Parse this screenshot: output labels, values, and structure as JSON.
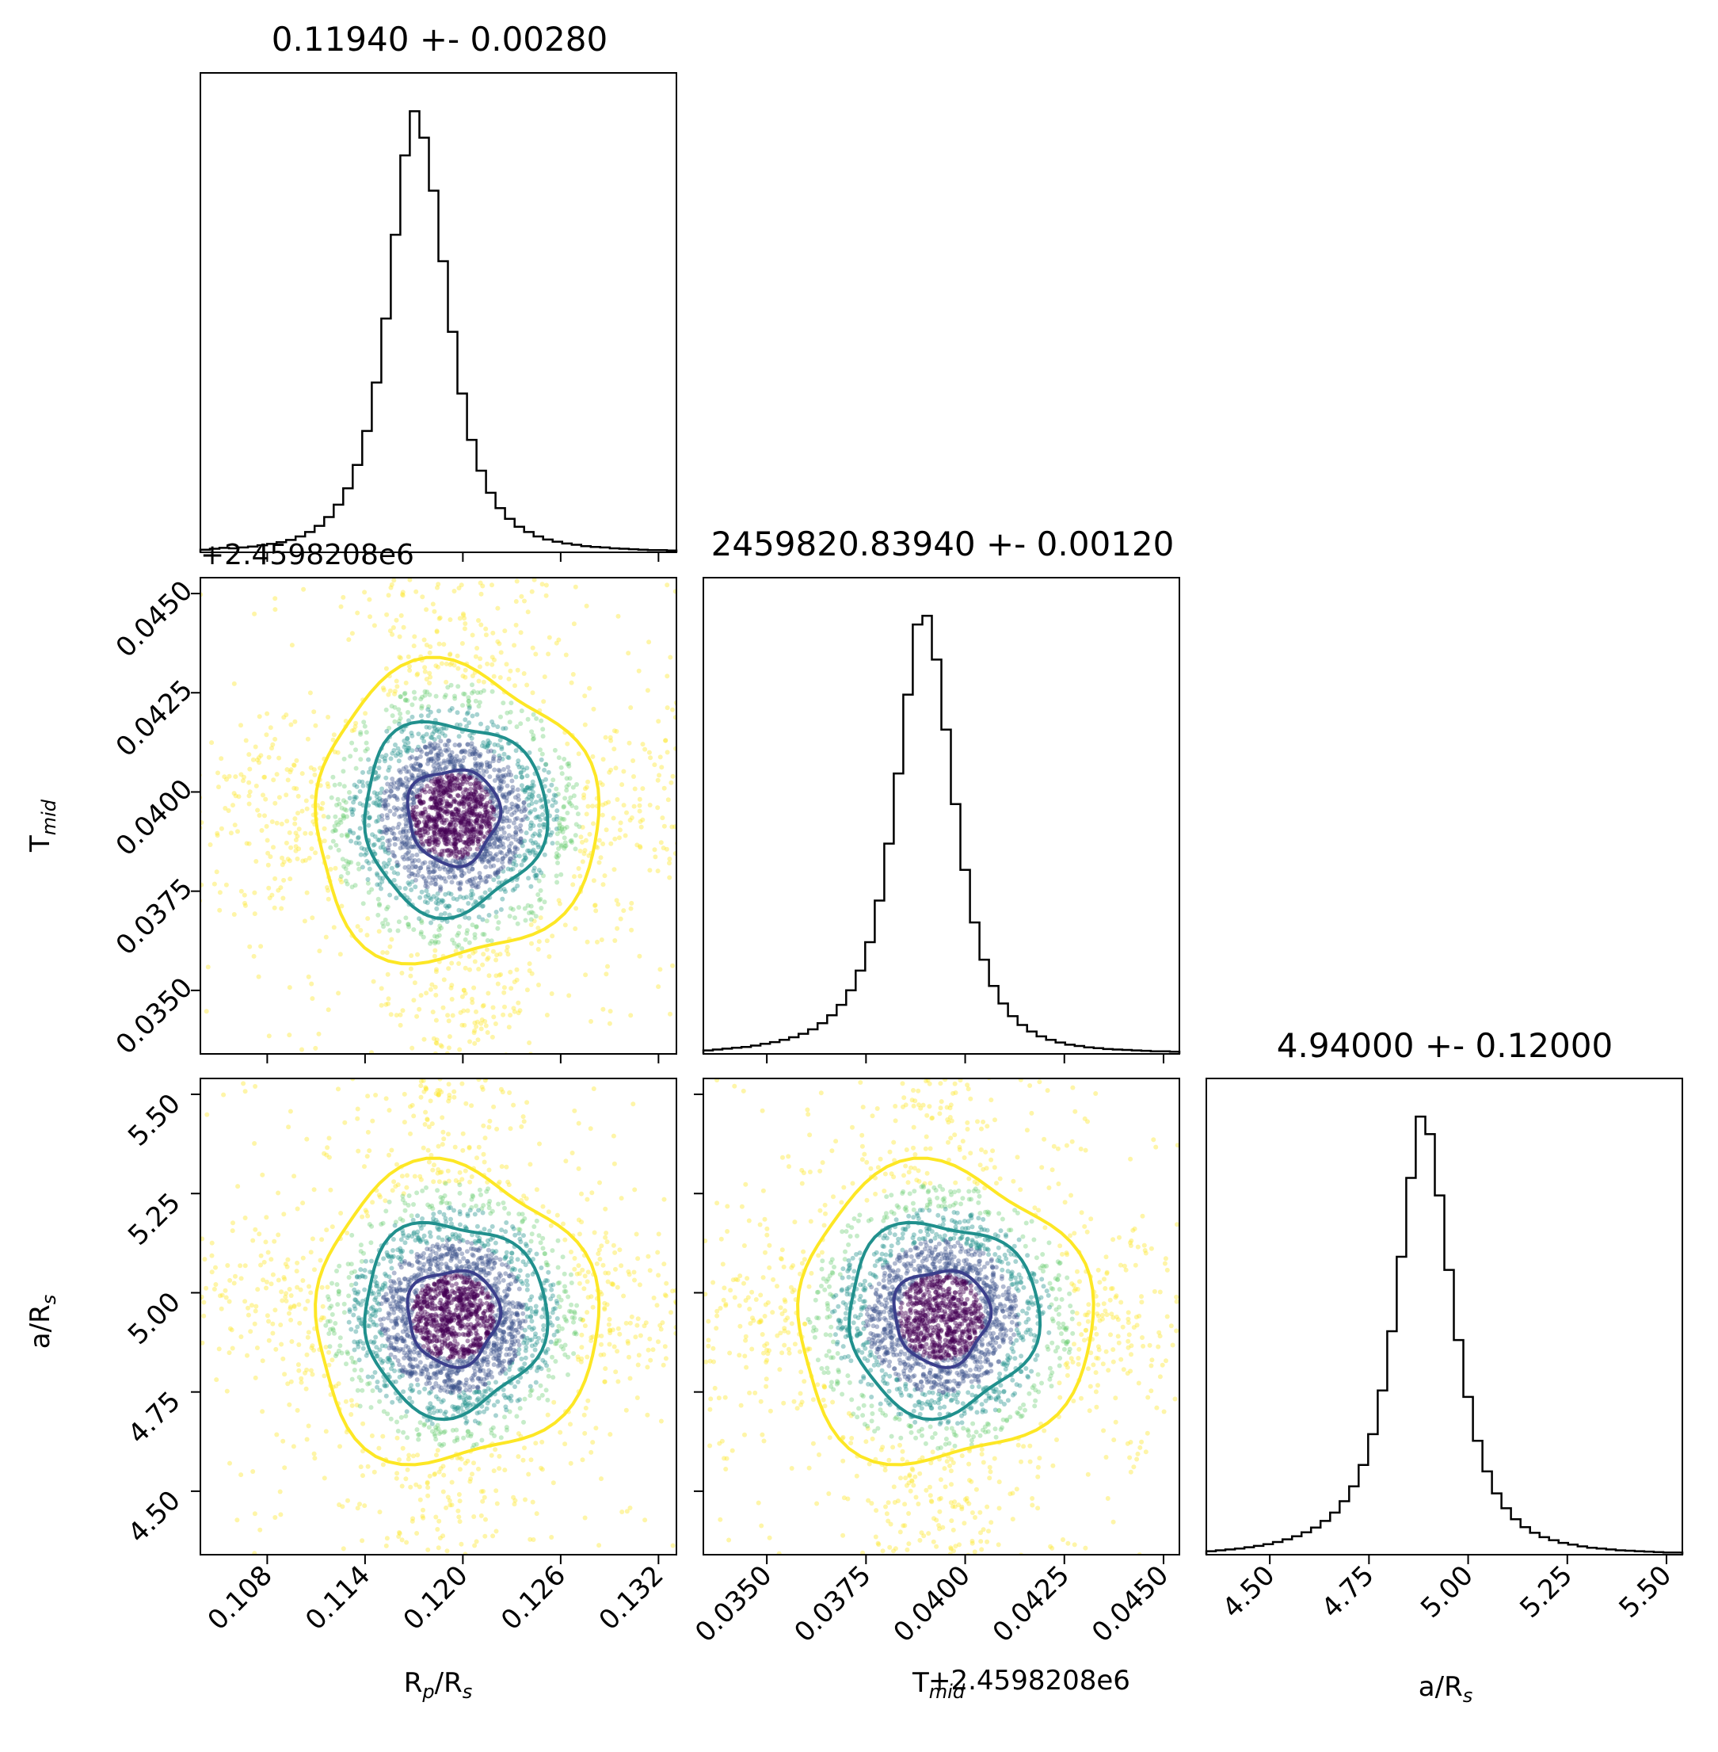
{
  "chart_data": {
    "type": "corner",
    "parameters": [
      {
        "key": "rp",
        "label": "R_p/R_s",
        "range": [
          0.1039,
          0.1331
        ],
        "ticks": [
          0.108,
          0.114,
          0.12,
          0.126,
          0.132
        ],
        "tick_labels": [
          "0.108",
          "0.114",
          "0.120",
          "0.126",
          "0.132"
        ],
        "median": 0.1194,
        "sigma": 0.0028
      },
      {
        "key": "tmid",
        "label": "T_mid",
        "range": [
          0.0334,
          0.0454
        ],
        "ticks": [
          0.035,
          0.0375,
          0.04,
          0.0425,
          0.045
        ],
        "tick_labels": [
          "0.0350",
          "0.0375",
          "0.0400",
          "0.0425",
          "0.0450"
        ],
        "median": 0.0394,
        "sigma": 0.0012,
        "offset_label": "+2.4598208e6"
      },
      {
        "key": "ars",
        "label": "a/R_s",
        "range": [
          4.34,
          5.54
        ],
        "ticks": [
          4.5,
          4.75,
          5.0,
          5.25,
          5.5
        ],
        "tick_labels": [
          "4.50",
          "4.75",
          "5.00",
          "5.25",
          "5.50"
        ],
        "median": 4.94,
        "sigma": 0.12
      }
    ],
    "titles": [
      "0.11940 +- 0.00280",
      "2459820.83940 +- 0.00120",
      "4.94000 +- 0.12000"
    ],
    "axis_labels": {
      "rp_x": "Rp/Rs",
      "tmid_y": "Tmid",
      "ars_y": "a/Rs",
      "tmid_x": "Tmid",
      "ars_x": "a/Rs",
      "tmid_x_offset": "+2.4598208e6",
      "tmid_y_offset": "+2.4598208e6"
    },
    "histograms": {
      "rp": [
        0.6,
        0.8,
        1.0,
        0.9,
        1.1,
        1.3,
        1.6,
        1.9,
        2.3,
        2.8,
        3.6,
        4.6,
        6.0,
        8.0,
        10.8,
        14.5,
        19.8,
        27.5,
        38.5,
        53.0,
        72.0,
        90.0,
        100.0,
        94.0,
        82.0,
        66.0,
        50.0,
        36.0,
        25.5,
        18.5,
        13.5,
        10.0,
        7.6,
        5.8,
        4.6,
        3.6,
        2.9,
        2.4,
        2.0,
        1.7,
        1.4,
        1.2,
        1.1,
        0.9,
        0.8,
        0.7,
        0.6,
        0.5,
        0.5,
        0.4
      ],
      "tmid": [
        0.8,
        1.0,
        1.2,
        1.4,
        1.6,
        1.9,
        2.3,
        2.7,
        3.2,
        3.8,
        4.6,
        5.6,
        7.0,
        8.8,
        11.2,
        14.5,
        19.0,
        25.5,
        35.0,
        48.0,
        64.0,
        82.0,
        98.0,
        100.0,
        90.0,
        74.0,
        57.0,
        42.0,
        30.0,
        21.5,
        15.5,
        11.5,
        8.6,
        6.6,
        5.1,
        4.0,
        3.2,
        2.6,
        2.1,
        1.8,
        1.5,
        1.3,
        1.1,
        1.0,
        0.9,
        0.8,
        0.7,
        0.6,
        0.6,
        0.5
      ],
      "ars": [
        0.8,
        1.0,
        1.2,
        1.4,
        1.7,
        2.0,
        2.4,
        2.9,
        3.5,
        4.2,
        5.1,
        6.2,
        7.7,
        9.6,
        12.2,
        15.6,
        20.5,
        27.5,
        37.5,
        51.0,
        68.0,
        86.0,
        100.0,
        96.0,
        82.0,
        65.0,
        49.0,
        36.0,
        26.0,
        19.0,
        14.0,
        10.6,
        8.1,
        6.3,
        5.0,
        4.0,
        3.3,
        2.7,
        2.3,
        1.9,
        1.6,
        1.4,
        1.2,
        1.0,
        0.9,
        0.8,
        0.7,
        0.6,
        0.5,
        0.5
      ]
    },
    "contour_levels": [
      {
        "name": "inner",
        "color": "#3b3f8c",
        "scale": 0.5
      },
      {
        "name": "middle",
        "color": "#21908d",
        "scale": 1.0
      },
      {
        "name": "outer",
        "color": "#fde725",
        "scale": 1.55
      }
    ],
    "scatter_colors": [
      "#440154",
      "#3b528b",
      "#21908d",
      "#5dc963",
      "#fde725"
    ],
    "grid": false
  }
}
